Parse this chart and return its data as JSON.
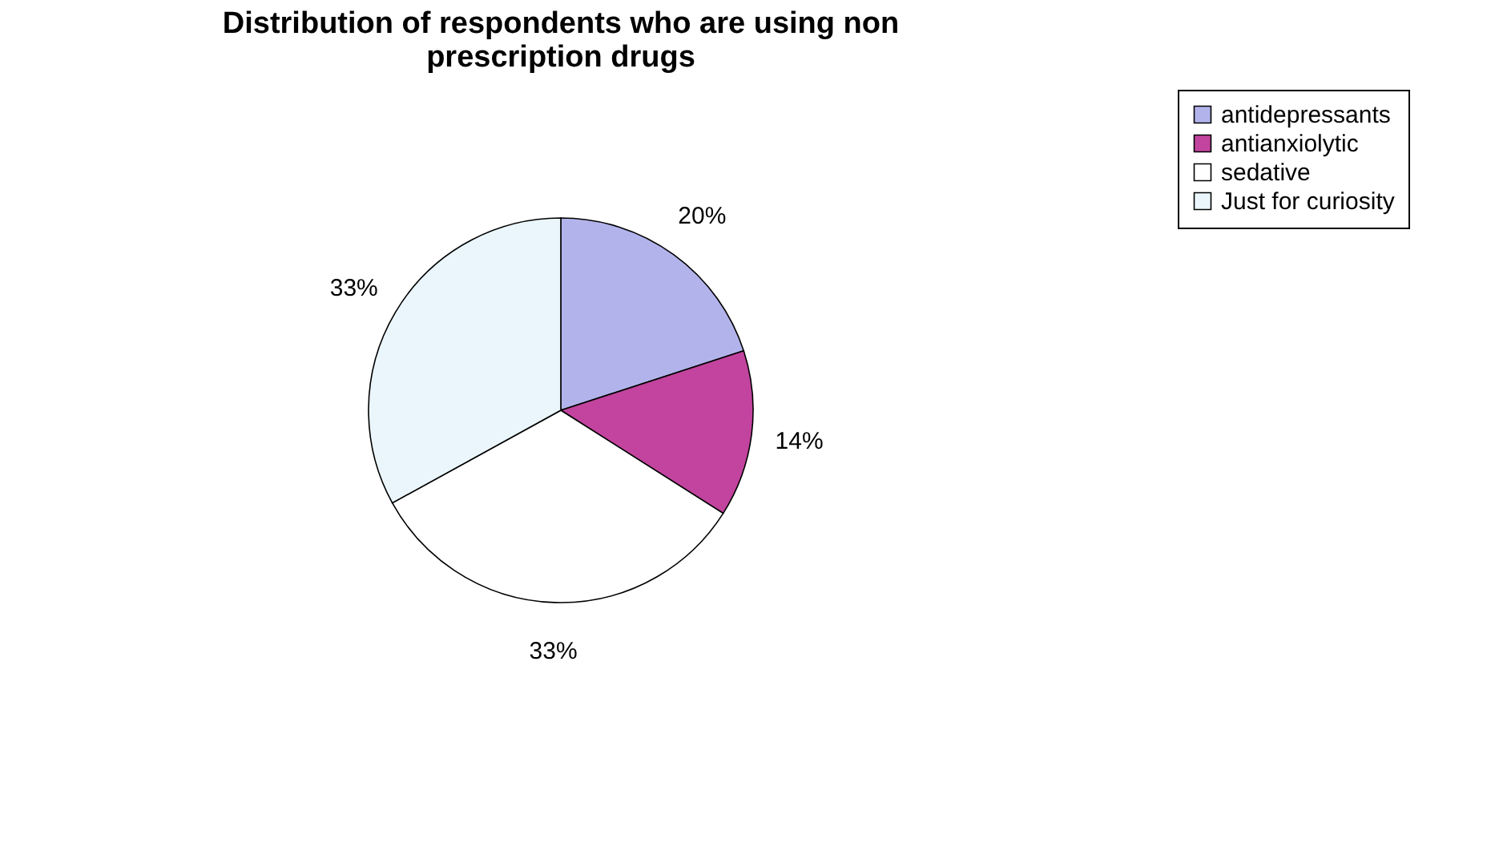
{
  "chart_data": {
    "type": "pie",
    "title": "Distribution of respondents who are using non prescription drugs",
    "categories": [
      "antidepressants",
      "antianxiolytic",
      "sedative",
      "Just for curiosity"
    ],
    "values": [
      20,
      14,
      33,
      33
    ],
    "colors": [
      "#b3b3ec",
      "#c2449e",
      "#ffffff",
      "#eaf6fb"
    ],
    "value_labels": [
      "20%",
      "14%",
      "33%",
      "33%"
    ],
    "legend": "right"
  }
}
